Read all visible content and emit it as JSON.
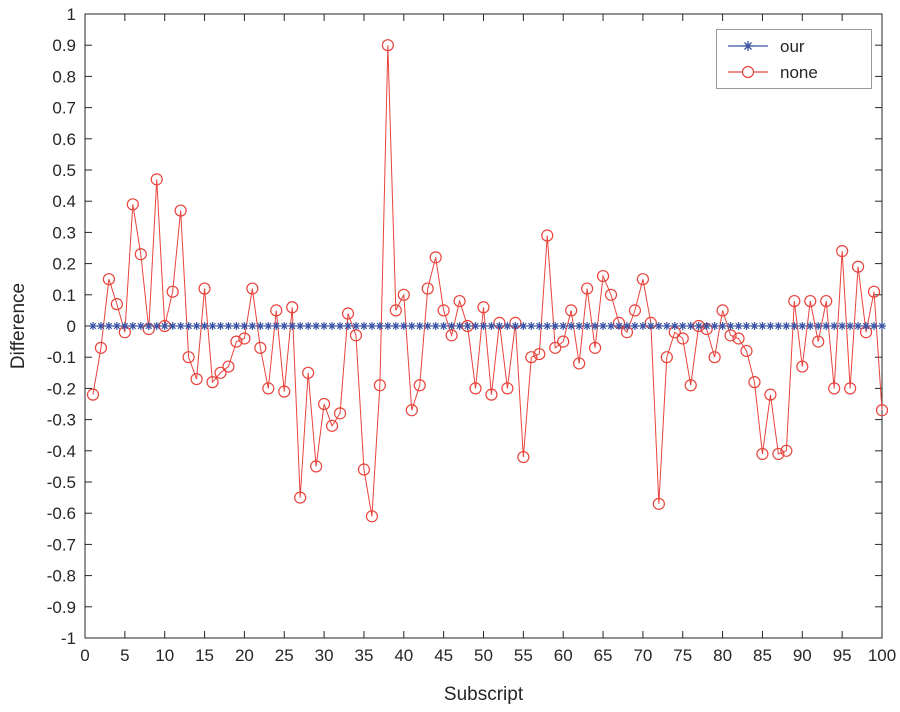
{
  "figure": {
    "background_color": "#ffffff",
    "axis_color": "#262626"
  },
  "chart_data": {
    "type": "line",
    "title": "",
    "xlabel": "Subscript",
    "ylabel": "Difference",
    "xlim": [
      0,
      100
    ],
    "ylim": [
      -1,
      1
    ],
    "grid": false,
    "legend_position": "top-right",
    "x_start": 1,
    "xticks": [
      0,
      5,
      10,
      15,
      20,
      25,
      30,
      35,
      40,
      45,
      50,
      55,
      60,
      65,
      70,
      75,
      80,
      85,
      90,
      95,
      100
    ],
    "yticks": [
      -1,
      -0.9,
      -0.8,
      -0.7,
      -0.6,
      -0.5,
      -0.4,
      -0.3,
      -0.2,
      -0.1,
      0,
      0.1,
      0.2,
      0.3,
      0.4,
      0.5,
      0.6,
      0.7,
      0.8,
      0.9,
      1
    ],
    "series": [
      {
        "name": "our",
        "color": "#3a53a4",
        "marker": "asterisk",
        "values": [
          0,
          0,
          0,
          0,
          0,
          0,
          0,
          0,
          0,
          0,
          0,
          0,
          0,
          0,
          0,
          0,
          0,
          0,
          0,
          0,
          0,
          0,
          0,
          0,
          0,
          0,
          0,
          0,
          0,
          0,
          0,
          0,
          0,
          0,
          0,
          0,
          0,
          0,
          0,
          0,
          0,
          0,
          0,
          0,
          0,
          0,
          0,
          0,
          0,
          0,
          0,
          0,
          0,
          0,
          0,
          0,
          0,
          0,
          0,
          0,
          0,
          0,
          0,
          0,
          0,
          0,
          0,
          0,
          0,
          0,
          0,
          0,
          0,
          0,
          0,
          0,
          0,
          0,
          0,
          0,
          0,
          0,
          0,
          0,
          0,
          0,
          0,
          0,
          0,
          0,
          0,
          0,
          0,
          0,
          0,
          0,
          0,
          0,
          0,
          0
        ]
      },
      {
        "name": "none",
        "color": "#e8433c",
        "marker": "circle",
        "values": [
          -0.22,
          -0.07,
          0.15,
          0.07,
          -0.02,
          0.39,
          0.23,
          -0.01,
          0.47,
          0.0,
          0.11,
          0.37,
          -0.1,
          -0.17,
          0.12,
          -0.18,
          -0.15,
          -0.13,
          -0.05,
          -0.04,
          0.12,
          -0.07,
          -0.2,
          0.05,
          -0.21,
          0.06,
          -0.55,
          -0.15,
          -0.45,
          -0.25,
          -0.32,
          -0.28,
          0.04,
          -0.03,
          -0.46,
          -0.61,
          -0.19,
          0.9,
          0.05,
          0.1,
          -0.27,
          -0.19,
          0.12,
          0.22,
          0.05,
          -0.03,
          0.08,
          0.0,
          -0.2,
          0.06,
          -0.22,
          0.01,
          -0.2,
          0.01,
          -0.42,
          -0.1,
          -0.09,
          0.29,
          -0.07,
          -0.05,
          0.05,
          -0.12,
          0.12,
          -0.07,
          0.16,
          0.1,
          0.01,
          -0.02,
          0.05,
          0.15,
          0.01,
          -0.57,
          -0.1,
          -0.02,
          -0.04,
          -0.19,
          0.0,
          -0.01,
          -0.1,
          0.05,
          -0.03,
          -0.04,
          -0.08,
          -0.18,
          -0.41,
          -0.22,
          -0.41,
          -0.4,
          0.08,
          -0.13,
          0.08,
          -0.05,
          0.08,
          -0.2,
          0.24,
          -0.2,
          0.19,
          -0.02,
          0.11,
          -0.27
        ]
      }
    ]
  }
}
